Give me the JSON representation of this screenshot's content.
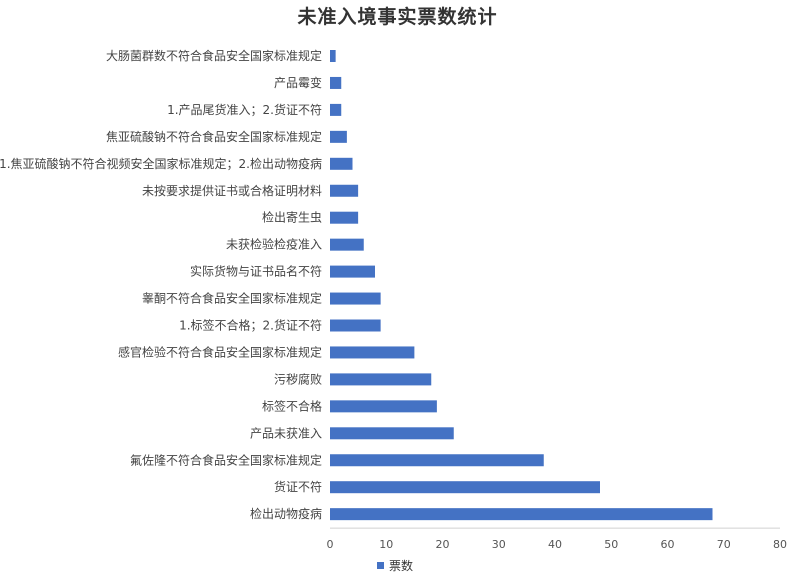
{
  "chart_data": {
    "type": "bar",
    "orientation": "horizontal",
    "title": "未准入境事实票数统计",
    "xlabel": "",
    "ylabel": "",
    "xlim": [
      0,
      80
    ],
    "xticks": [
      0,
      10,
      20,
      30,
      40,
      50,
      60,
      70,
      80
    ],
    "grid": false,
    "legend_position": "bottom",
    "bar_color": "#4472C4",
    "categories": [
      "大肠菌群数不符合食品安全国家标准规定",
      "产品霉变",
      "1.产品尾货准入；2.货证不符",
      "焦亚硫酸钠不符合食品安全国家标准规定",
      "1.焦亚硫酸钠不符合视频安全国家标准规定；2.检出动物疫病",
      "未按要求提供证书或合格证明材料",
      "检出寄生虫",
      "未获检验检疫准入",
      "实际货物与证书品名不符",
      "睾酮不符合食品安全国家标准规定",
      "1.标签不合格；2.货证不符",
      "感官检验不符合食品安全国家标准规定",
      "污秽腐败",
      "标签不合格",
      "产品未获准入",
      "氟佐隆不符合食品安全国家标准规定",
      "货证不符",
      "检出动物疫病"
    ],
    "series": [
      {
        "name": "票数",
        "values": [
          1,
          2,
          2,
          3,
          4,
          5,
          5,
          6,
          8,
          9,
          9,
          15,
          18,
          19,
          22,
          38,
          48,
          68
        ]
      }
    ]
  }
}
